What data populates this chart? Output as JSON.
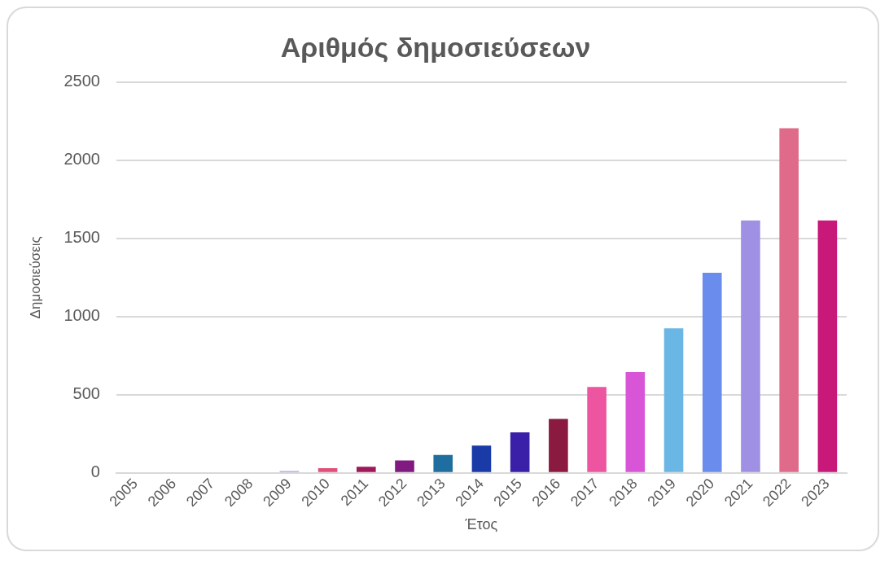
{
  "chart_data": {
    "type": "bar",
    "title": "Αριθμός δημοσιεύσεων",
    "xlabel": "Έτος",
    "ylabel": "Δημοσιεύσεις",
    "categories": [
      "2005",
      "2006",
      "2007",
      "2008",
      "2009",
      "2010",
      "2011",
      "2012",
      "2013",
      "2014",
      "2015",
      "2016",
      "2017",
      "2018",
      "2019",
      "2020",
      "2021",
      "2022",
      "2023"
    ],
    "values": [
      null,
      null,
      null,
      null,
      12,
      30,
      40,
      80,
      115,
      175,
      260,
      345,
      550,
      645,
      925,
      1280,
      1615,
      2205,
      1615
    ],
    "colors": [
      "#9b8fd8",
      "#d8d8e8",
      "#d0c8d8",
      "#c8c8d0",
      "#a99af0",
      "#e0507a",
      "#a0185a",
      "#801a80",
      "#1e6ea0",
      "#1a3aa8",
      "#3a20a8",
      "#8a1a40",
      "#ee55a0",
      "#d855d8",
      "#6ab6e4",
      "#6a8cec",
      "#a090e4",
      "#e06a8a",
      "#c8187a"
    ],
    "ylim": [
      0,
      2500
    ],
    "yticks": [
      0,
      500,
      1000,
      1500,
      2000,
      2500
    ],
    "grid": "y"
  }
}
